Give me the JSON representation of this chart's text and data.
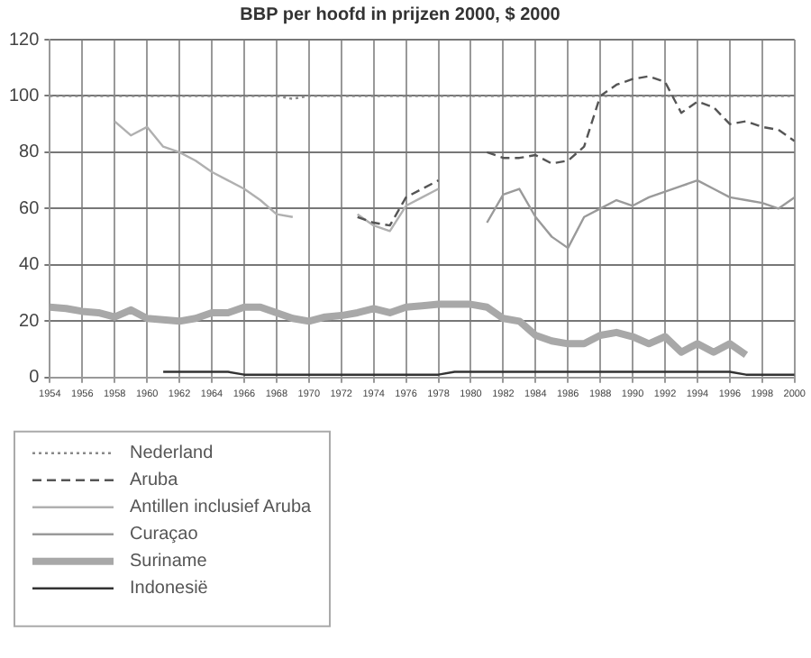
{
  "chart_data": {
    "type": "line",
    "title": "BBP per hoofd in prijzen 2000, $ 2000",
    "xlim": [
      1954,
      2000
    ],
    "xticks": [
      1954,
      1956,
      1958,
      1960,
      1962,
      1964,
      1966,
      1968,
      1970,
      1972,
      1974,
      1976,
      1978,
      1980,
      1982,
      1984,
      1986,
      1988,
      1990,
      1992,
      1994,
      1996,
      1998,
      2000
    ],
    "ylim": [
      0,
      120
    ],
    "yticks": [
      0,
      20,
      40,
      60,
      80,
      100,
      120
    ],
    "grid": true,
    "legend": "bottom left",
    "marker": "none",
    "series": [
      {
        "name": "Nederland",
        "color": "#8a8a8a",
        "line_style": "dotted",
        "x": [
          1954,
          1960,
          1966,
          1968,
          1969,
          1970,
          1976,
          1982,
          1988,
          1994,
          2000
        ],
        "values": [
          100,
          100,
          100,
          100,
          99,
          100,
          100,
          100,
          100,
          100,
          100
        ]
      },
      {
        "name": "Aruba",
        "color": "#555555",
        "line_style": "dashed",
        "x": [
          1973,
          1974,
          1975,
          1976,
          1977,
          1978,
          null,
          1981,
          1982,
          1983,
          1984,
          1985,
          1986,
          1987,
          1988,
          1989,
          1990,
          1991,
          1992,
          1993,
          1994,
          1995,
          1996,
          1997,
          1998,
          1999,
          2000
        ],
        "values": [
          57,
          55,
          54,
          64,
          67,
          70,
          null,
          80,
          78,
          78,
          79,
          76,
          77,
          82,
          100,
          104,
          106,
          107,
          105,
          94,
          98,
          96,
          90,
          91,
          89,
          88,
          84
        ]
      },
      {
        "name": "Antillen inclusief Aruba",
        "color": "#b0b0b0",
        "line_style": "solid",
        "x": [
          1958,
          1959,
          1960,
          1961,
          1962,
          1963,
          1964,
          1965,
          1966,
          1967,
          1968,
          1969,
          null,
          1973,
          1974,
          1975,
          1976,
          1977,
          1978
        ],
        "values": [
          91,
          86,
          89,
          82,
          80,
          77,
          73,
          70,
          67,
          63,
          58,
          57,
          null,
          58,
          54,
          52,
          61,
          64,
          67
        ]
      },
      {
        "name": "Curaçao",
        "color": "#9a9a9a",
        "line_style": "solid",
        "x": [
          1981,
          1982,
          1983,
          1984,
          1985,
          1986,
          1987,
          1988,
          1989,
          1990,
          1991,
          1992,
          1993,
          1994,
          1995,
          1996,
          1997,
          1998,
          1999,
          2000
        ],
        "values": [
          55,
          65,
          67,
          57,
          50,
          46,
          57,
          60,
          63,
          61,
          64,
          66,
          68,
          70,
          67,
          64,
          63,
          62,
          60,
          64
        ]
      },
      {
        "name": "Suriname",
        "color": "#a8a8a8",
        "line_style": "solid",
        "x": [
          1954,
          1955,
          1956,
          1957,
          1958,
          1959,
          1960,
          1961,
          1962,
          1963,
          1964,
          1965,
          1966,
          1967,
          1968,
          1969,
          1970,
          1971,
          1972,
          1973,
          1974,
          1975,
          1976,
          1977,
          1978,
          1979,
          1980,
          1981,
          1982,
          1983,
          1984,
          1985,
          1986,
          1987,
          1988,
          1989,
          1990,
          1991,
          1992,
          1993,
          1994,
          1995,
          1996,
          1997
        ],
        "values": [
          25,
          24.5,
          23.5,
          23,
          21.5,
          24,
          21,
          20.5,
          20,
          21,
          23,
          23,
          25,
          25,
          23,
          21,
          20,
          21.5,
          22,
          23,
          24.5,
          23,
          25,
          25.5,
          26,
          26,
          26,
          25,
          21,
          20,
          15,
          13,
          12,
          12,
          15,
          16,
          14.5,
          12,
          14.5,
          9,
          12,
          9,
          12,
          8
        ]
      },
      {
        "name": "Indonesië",
        "color": "#333333",
        "line_style": "solid",
        "x": [
          1961,
          1965,
          1966,
          1978,
          1979,
          1996,
          1997,
          2000
        ],
        "values": [
          2,
          2,
          1,
          1,
          2,
          2,
          1,
          1
        ]
      }
    ]
  }
}
